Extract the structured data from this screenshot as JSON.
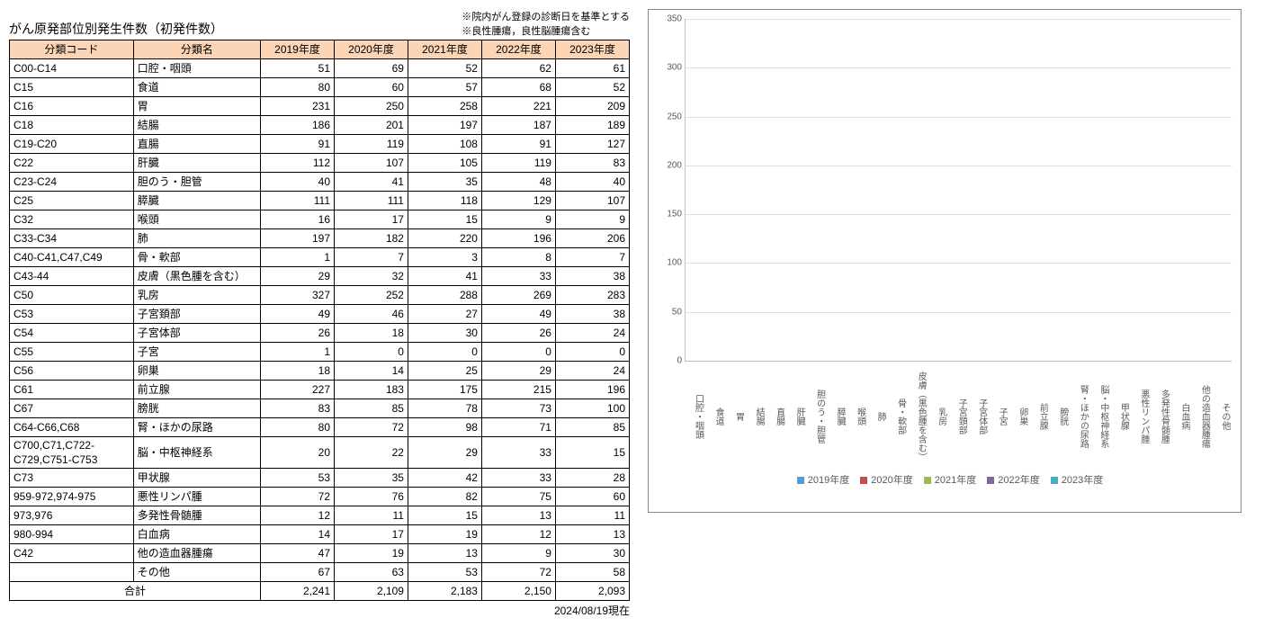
{
  "title": "がん原発部位別発生件数（初発件数）",
  "note1": "※院内がん登録の診断日を基準とする",
  "note2": "※良性腫瘍，良性脳腫瘍含む",
  "date_note": "2024/08/19現在",
  "headers": {
    "code": "分類コード",
    "name": "分類名",
    "y2019": "2019年度",
    "y2020": "2020年度",
    "y2021": "2021年度",
    "y2022": "2022年度",
    "y2023": "2023年度"
  },
  "rows": [
    {
      "code": "C00-C14",
      "name": "口腔・咽頭",
      "v": [
        51,
        69,
        52,
        62,
        61
      ]
    },
    {
      "code": "C15",
      "name": "食道",
      "v": [
        80,
        60,
        57,
        68,
        52
      ]
    },
    {
      "code": "C16",
      "name": "胃",
      "v": [
        231,
        250,
        258,
        221,
        209
      ]
    },
    {
      "code": "C18",
      "name": "結腸",
      "v": [
        186,
        201,
        197,
        187,
        189
      ]
    },
    {
      "code": "C19-C20",
      "name": "直腸",
      "v": [
        91,
        119,
        108,
        91,
        127
      ]
    },
    {
      "code": "C22",
      "name": "肝臓",
      "v": [
        112,
        107,
        105,
        119,
        83
      ]
    },
    {
      "code": "C23-C24",
      "name": "胆のう・胆管",
      "v": [
        40,
        41,
        35,
        48,
        40
      ]
    },
    {
      "code": "C25",
      "name": "膵臓",
      "v": [
        111,
        111,
        118,
        129,
        107
      ]
    },
    {
      "code": "C32",
      "name": "喉頭",
      "v": [
        16,
        17,
        15,
        9,
        9
      ]
    },
    {
      "code": "C33-C34",
      "name": "肺",
      "v": [
        197,
        182,
        220,
        196,
        206
      ]
    },
    {
      "code": "C40-C41,C47,C49",
      "name": "骨・軟部",
      "v": [
        1,
        7,
        3,
        8,
        7
      ]
    },
    {
      "code": "C43-44",
      "name": "皮膚（黒色腫を含む）",
      "v": [
        29,
        32,
        41,
        33,
        38
      ]
    },
    {
      "code": "C50",
      "name": "乳房",
      "v": [
        327,
        252,
        288,
        269,
        283
      ]
    },
    {
      "code": "C53",
      "name": "子宮頚部",
      "v": [
        49,
        46,
        27,
        49,
        38
      ]
    },
    {
      "code": "C54",
      "name": "子宮体部",
      "v": [
        26,
        18,
        30,
        26,
        24
      ]
    },
    {
      "code": "C55",
      "name": "子宮",
      "v": [
        1,
        0,
        0,
        0,
        0
      ]
    },
    {
      "code": "C56",
      "name": "卵巣",
      "v": [
        18,
        14,
        25,
        29,
        24
      ]
    },
    {
      "code": "C61",
      "name": "前立腺",
      "v": [
        227,
        183,
        175,
        215,
        196
      ]
    },
    {
      "code": "C67",
      "name": "膀胱",
      "v": [
        83,
        85,
        78,
        73,
        100
      ]
    },
    {
      "code": "C64-C66,C68",
      "name": "腎・ほかの尿路",
      "v": [
        80,
        72,
        98,
        71,
        85
      ]
    },
    {
      "code": "C700,C71,C722-C729,C751-C753",
      "name": "脳・中枢神経系",
      "v": [
        20,
        22,
        29,
        33,
        15
      ]
    },
    {
      "code": "C73",
      "name": "甲状腺",
      "v": [
        53,
        35,
        42,
        33,
        28
      ]
    },
    {
      "code": "959-972,974-975",
      "name": "悪性リンパ腫",
      "v": [
        72,
        76,
        82,
        75,
        60
      ]
    },
    {
      "code": "973,976",
      "name": "多発性骨髄腫",
      "v": [
        12,
        11,
        15,
        13,
        11
      ]
    },
    {
      "code": "980-994",
      "name": "白血病",
      "v": [
        14,
        17,
        19,
        12,
        13
      ]
    },
    {
      "code": "C42",
      "name": "他の造血器腫瘍",
      "v": [
        47,
        19,
        13,
        9,
        30
      ]
    },
    {
      "code": "",
      "name": "その他",
      "v": [
        67,
        63,
        53,
        72,
        58
      ]
    }
  ],
  "total": {
    "label": "合計",
    "v": [
      "2,241",
      "2,109",
      "2,183",
      "2,150",
      "2,093"
    ]
  },
  "chart": {
    "ymax": 350,
    "ytick_step": 50,
    "colors": [
      "#4472c4",
      "#ed7d31",
      "#a5a5a5",
      "#ffc000",
      "#5b9bd5"
    ],
    "colors_actual": [
      "#5b9bd5",
      "#c0504d",
      "#9bbb59",
      "#8064a2",
      "#4bacc6"
    ],
    "legend": [
      "2019年度",
      "2020年度",
      "2021年度",
      "2022年度",
      "2023年度"
    ],
    "background": "#ffffff",
    "grid_color": "#e0e0e0",
    "label_fontsize": 10
  }
}
